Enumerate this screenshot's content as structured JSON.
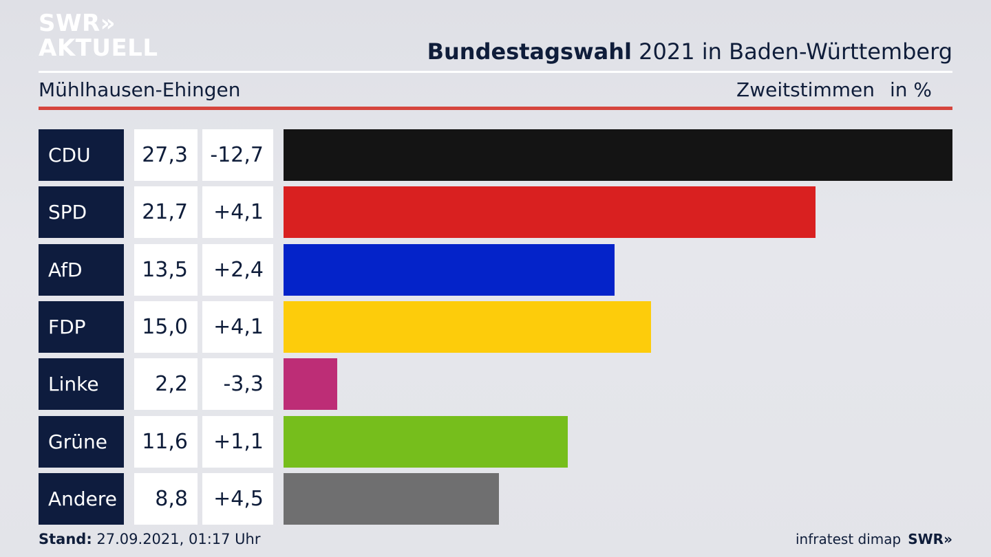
{
  "logo": {
    "line1": "SWR»",
    "line2": "AKTUELL"
  },
  "header": {
    "title_bold": "Bundestagswahl",
    "title_rest": " 2021 in Baden-Württemberg",
    "subtitle": "Mühlhausen-Ehingen",
    "metric": "Zweitstimmen",
    "unit": "in %"
  },
  "chart_data": {
    "type": "bar",
    "title": "Bundestagswahl 2021 in Baden-Württemberg",
    "subtitle": "Mühlhausen-Ehingen",
    "metric": "Zweitstimmen in %",
    "categories": [
      "CDU",
      "SPD",
      "AfD",
      "FDP",
      "Linke",
      "Grüne",
      "Andere"
    ],
    "values": [
      27.3,
      21.7,
      13.5,
      15.0,
      2.2,
      11.6,
      8.8
    ],
    "value_labels": [
      "27,3",
      "21,7",
      "13,5",
      "15,0",
      "2,2",
      "11,6",
      "8,8"
    ],
    "diff_labels": [
      "-12,7",
      "+4,1",
      "+2,4",
      "+4,1",
      "-3,3",
      "+1,1",
      "+4,5"
    ],
    "colors": [
      "#141414",
      "#d92020",
      "#0423c9",
      "#fdcc0b",
      "#bd2d76",
      "#76be1c",
      "#6f6f70"
    ]
  },
  "footer": {
    "stand_label": "Stand:",
    "stand_value": " 27.09.2021, 01:17 Uhr",
    "source": "infratest dimap",
    "brand": "SWR»"
  }
}
